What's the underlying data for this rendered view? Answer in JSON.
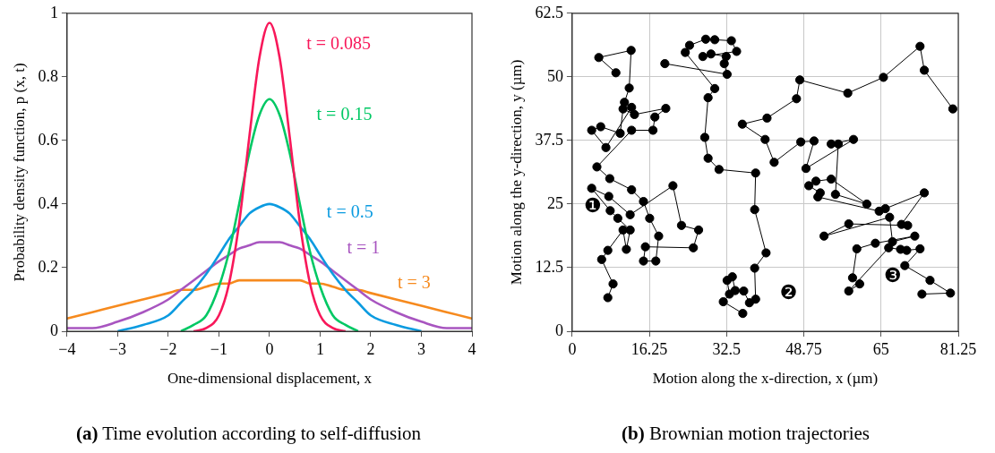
{
  "chart_data": [
    {
      "type": "line",
      "xlabel": "One-dimensional displacement, x",
      "ylabel": "Probability density function, p (x, t)",
      "x": [
        -4,
        -3.5,
        -3,
        -2.5,
        -2,
        -1.75,
        -1.5,
        -1.25,
        -1,
        -0.8,
        -0.6,
        -0.4,
        -0.2,
        0,
        0.2,
        0.4,
        0.6,
        0.8,
        1,
        1.25,
        1.5,
        1.75,
        2,
        2.5,
        3,
        3.5,
        4
      ],
      "series": [
        {
          "name": "t = 0.085",
          "color": "#f8185a",
          "values": [
            null,
            null,
            null,
            null,
            null,
            null,
            0,
            0.01,
            0.05,
            0.15,
            0.34,
            0.61,
            0.86,
            0.97,
            0.86,
            0.61,
            0.34,
            0.15,
            0.05,
            0.01,
            0,
            null,
            null,
            null,
            null,
            null,
            null
          ]
        },
        {
          "name": "t = 0.15",
          "color": "#00c864",
          "values": [
            null,
            null,
            null,
            null,
            null,
            0,
            0.02,
            0.05,
            0.14,
            0.25,
            0.4,
            0.56,
            0.68,
            0.73,
            0.68,
            0.56,
            0.4,
            0.25,
            0.14,
            0.05,
            0.02,
            0,
            null,
            null,
            null,
            null,
            null
          ]
        },
        {
          "name": "t = 0.5",
          "color": "#0b9be0",
          "values": [
            null,
            null,
            0,
            0.02,
            0.05,
            0.09,
            0.13,
            0.18,
            0.24,
            0.29,
            0.33,
            0.37,
            0.39,
            0.4,
            0.39,
            0.37,
            0.33,
            0.29,
            0.24,
            0.18,
            0.13,
            0.09,
            0.05,
            0.02,
            0,
            null,
            null
          ]
        },
        {
          "name": "t = 1",
          "color": "#a855c0",
          "values": [
            0.01,
            0.01,
            0.03,
            0.06,
            0.1,
            0.13,
            0.16,
            0.19,
            0.22,
            0.24,
            0.26,
            0.27,
            0.28,
            0.28,
            0.28,
            0.27,
            0.26,
            0.24,
            0.22,
            0.19,
            0.16,
            0.13,
            0.1,
            0.06,
            0.03,
            0.01,
            0.01
          ]
        },
        {
          "name": "t = 3",
          "color": "#f68a1e",
          "values": [
            0.04,
            0.06,
            0.08,
            0.1,
            0.12,
            0.13,
            0.13,
            0.14,
            0.15,
            0.15,
            0.16,
            0.16,
            0.16,
            0.16,
            0.16,
            0.16,
            0.16,
            0.15,
            0.15,
            0.14,
            0.13,
            0.13,
            0.12,
            0.1,
            0.08,
            0.06,
            0.04
          ]
        }
      ],
      "xlim": [
        -4,
        4
      ],
      "xticks": [
        {
          "value": -4,
          "label": "−4"
        },
        {
          "value": -3,
          "label": "−3"
        },
        {
          "value": -2,
          "label": "−2"
        },
        {
          "value": -1,
          "label": "−1"
        },
        0,
        1,
        2,
        3,
        4
      ],
      "ylim": [
        0,
        1
      ],
      "yticks": [
        0,
        0.2,
        0.4,
        0.6,
        0.8,
        1
      ],
      "marker": "none",
      "grid": false,
      "legend": false,
      "annotations": [
        "(a) Time evolution according to self-diffusion"
      ]
    },
    {
      "type": "line",
      "xlabel": "Motion along the x-direction, x (µm)",
      "ylabel": "Motion along the y-direction, y (µm)",
      "series": [
        {
          "name": "❶",
          "color": "#000000",
          "x": [
            7.5,
            8.6,
            6.2,
            7.5,
            10.7,
            11.4,
            12.2,
            9.6,
            8,
            4.1,
            7.7,
            12.2,
            21.2,
            23,
            26.6,
            25.5,
            15.4,
            15,
            17.6,
            18.2,
            16.3,
            15,
            12.5,
            7.9,
            5.2,
            12.5,
            17,
            17.4,
            19.7,
            13.1,
            10.7,
            10.1,
            6,
            4.1,
            7.1,
            12.5,
            11,
            12,
            12.4,
            5.6,
            9.2
          ],
          "values": [
            6.6,
            9.3,
            14.1,
            15.9,
            19.9,
            16.1,
            19.9,
            22.2,
            23.7,
            28.1,
            26.5,
            22.9,
            28.6,
            20.8,
            19.9,
            16.4,
            16.6,
            13.8,
            13.8,
            18.7,
            22.2,
            25.5,
            27.8,
            30,
            32.3,
            39.5,
            39.5,
            42.1,
            43.8,
            42.6,
            43.7,
            38.9,
            40.2,
            39.5,
            36.1,
            44,
            45,
            47.8,
            55.2,
            53.8,
            50.8
          ]
        },
        {
          "name": "❷",
          "color": "#000000",
          "x": [
            35.9,
            31.8,
            33.1,
            32.6,
            33.7,
            34.3,
            36.1,
            37.3,
            38.6,
            38.4,
            40.8,
            38.4,
            38.6,
            30.9,
            28.6,
            27.9,
            28.6,
            30,
            23.8,
            24.7,
            28.1,
            30,
            33.5,
            34.6,
            27.5,
            29.2,
            32.4,
            32,
            32.6,
            19.5
          ],
          "values": [
            3.5,
            5.8,
            7.3,
            10,
            10.7,
            8,
            7.9,
            5.6,
            6.3,
            12.4,
            15.4,
            23.9,
            31.1,
            31.8,
            34,
            38.1,
            45.9,
            47.7,
            54.8,
            56.2,
            57.4,
            57.3,
            57.1,
            55,
            54,
            54.5,
            54,
            52.6,
            50.5,
            52.6
          ]
        },
        {
          "name": "❸",
          "color": "#000000",
          "x": [
            80.1,
            74.1,
            73.2,
            65.5,
            58,
            47.9,
            47.2,
            41,
            35.8,
            40.6,
            42.5,
            48.1,
            50.9,
            49.2,
            59.2,
            54.5,
            56,
            55.4,
            62,
            54.5,
            51.3,
            49.8,
            52.2,
            51.7,
            64.6,
            65.9,
            74.1,
            69.3,
            70.6,
            58.2,
            53,
            66.8,
            67.4,
            72.1,
            63.8,
            59.9,
            59,
            60.5,
            58.2,
            66.6,
            69.1,
            70.4,
            73.2,
            70,
            75.3,
            79.6,
            73.6
          ],
          "values": [
            43.7,
            51.3,
            56,
            49.9,
            46.8,
            49.4,
            45.7,
            41.9,
            40.7,
            37.7,
            33.2,
            37.2,
            37.4,
            32,
            37.7,
            36.8,
            36.8,
            26.9,
            25,
            29.9,
            29.5,
            28.6,
            27.2,
            26.4,
            23.6,
            24.1,
            27.2,
            21,
            20.8,
            21.1,
            18.7,
            22.4,
            17.6,
            18.7,
            17.3,
            16.2,
            10.5,
            9.3,
            7.9,
            16.4,
            16.1,
            15.9,
            16.2,
            12.9,
            10,
            7.5,
            7.3
          ]
        }
      ],
      "xlim": [
        0,
        81.25
      ],
      "xticks": [
        0,
        16.25,
        32.5,
        48.75,
        65,
        81.25
      ],
      "ylim": [
        0,
        62.5
      ],
      "yticks": [
        0,
        12.5,
        25,
        37.5,
        50,
        62.5
      ],
      "marker": "circle",
      "grid": true,
      "legend": false,
      "annotations": [
        "(b) Brownian motion trajectories"
      ]
    }
  ]
}
